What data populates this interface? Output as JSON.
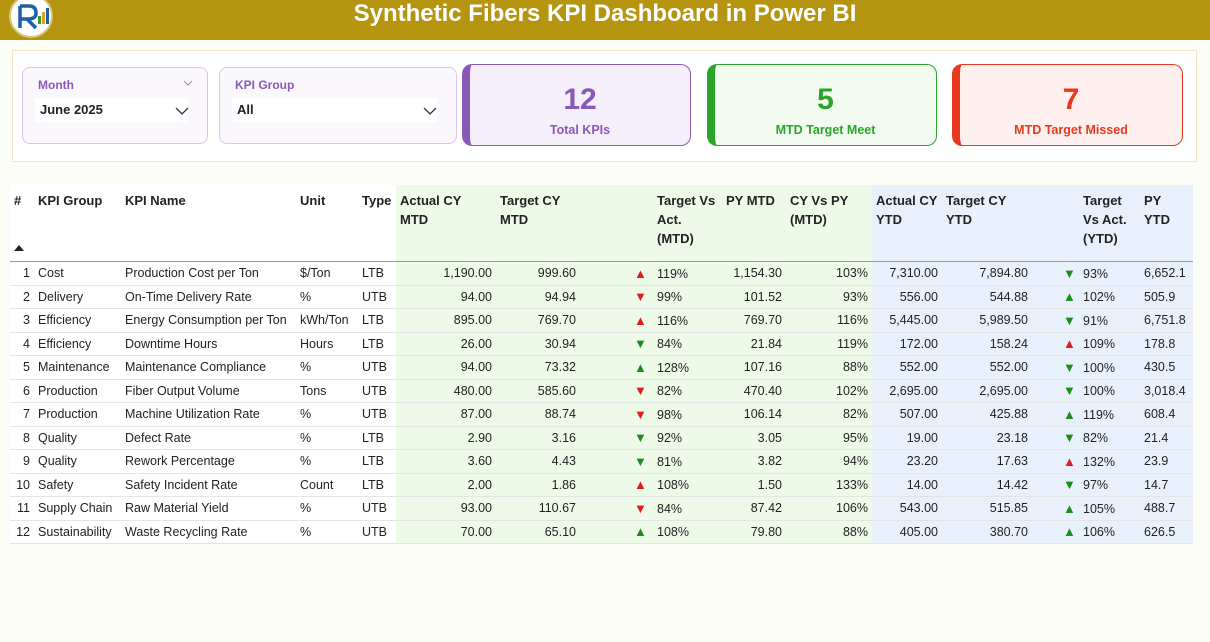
{
  "header": {
    "title": "Synthetic Fibers KPI Dashboard in Power BI"
  },
  "slicers": [
    {
      "label": "Month",
      "value": "June 2025"
    },
    {
      "label": "KPI Group",
      "value": "All"
    }
  ],
  "cards": [
    {
      "value": "12",
      "label": "Total KPIs",
      "color": "#8b58b8",
      "fill": "#f4effa"
    },
    {
      "value": "5",
      "label": "MTD Target Meet",
      "color": "#2aa52a",
      "fill": "#f1fbef"
    },
    {
      "value": "7",
      "label": "MTD Target Missed",
      "color": "#e8391e",
      "fill": "#fdf0ee"
    }
  ],
  "table": {
    "columns": [
      "#",
      "KPI Group",
      "KPI Name",
      "Unit",
      "Type",
      "Actual CY MTD",
      "Target CY MTD",
      "Target Vs Act. (MTD)",
      "PY MTD",
      "CY Vs PY (MTD)",
      "Actual CY YTD",
      "Target CY YTD",
      "Target Vs Act. (YTD)",
      "PY YTD"
    ],
    "icon_colors": {
      "good": "#1f8a1f",
      "bad": "#e01b1b"
    },
    "rows": [
      [
        "1",
        "Cost",
        "Production Cost per Ton",
        "$/Ton",
        "LTB",
        "1,190.00",
        "999.60",
        {
          "icon": "▲",
          "status": "bad",
          "text": "119%"
        },
        "1,154.30",
        "103%",
        "7,310.00",
        "7,894.80",
        {
          "icon": "▼",
          "status": "good",
          "text": "93%"
        },
        "6,652.1"
      ],
      [
        "2",
        "Delivery",
        "On-Time Delivery Rate",
        "%",
        "UTB",
        "94.00",
        "94.94",
        {
          "icon": "▼",
          "status": "bad",
          "text": "99%"
        },
        "101.52",
        "93%",
        "556.00",
        "544.88",
        {
          "icon": "▲",
          "status": "good",
          "text": "102%"
        },
        "505.9"
      ],
      [
        "3",
        "Efficiency",
        "Energy Consumption per Ton",
        "kWh/Ton",
        "LTB",
        "895.00",
        "769.70",
        {
          "icon": "▲",
          "status": "bad",
          "text": "116%"
        },
        "769.70",
        "116%",
        "5,445.00",
        "5,989.50",
        {
          "icon": "▼",
          "status": "good",
          "text": "91%"
        },
        "6,751.8"
      ],
      [
        "4",
        "Efficiency",
        "Downtime Hours",
        "Hours",
        "LTB",
        "26.00",
        "30.94",
        {
          "icon": "▼",
          "status": "good",
          "text": "84%"
        },
        "21.84",
        "119%",
        "172.00",
        "158.24",
        {
          "icon": "▲",
          "status": "bad",
          "text": "109%"
        },
        "178.8"
      ],
      [
        "5",
        "Maintenance",
        "Maintenance Compliance",
        "%",
        "UTB",
        "94.00",
        "73.32",
        {
          "icon": "▲",
          "status": "good",
          "text": "128%"
        },
        "107.16",
        "88%",
        "552.00",
        "552.00",
        {
          "icon": "▼",
          "status": "good",
          "text": "100%"
        },
        "430.5"
      ],
      [
        "6",
        "Production",
        "Fiber Output Volume",
        "Tons",
        "UTB",
        "480.00",
        "585.60",
        {
          "icon": "▼",
          "status": "bad",
          "text": "82%"
        },
        "470.40",
        "102%",
        "2,695.00",
        "2,695.00",
        {
          "icon": "▼",
          "status": "good",
          "text": "100%"
        },
        "3,018.4"
      ],
      [
        "7",
        "Production",
        "Machine Utilization Rate",
        "%",
        "UTB",
        "87.00",
        "88.74",
        {
          "icon": "▼",
          "status": "bad",
          "text": "98%"
        },
        "106.14",
        "82%",
        "507.00",
        "425.88",
        {
          "icon": "▲",
          "status": "good",
          "text": "119%"
        },
        "608.4"
      ],
      [
        "8",
        "Quality",
        "Defect Rate",
        "%",
        "LTB",
        "2.90",
        "3.16",
        {
          "icon": "▼",
          "status": "good",
          "text": "92%"
        },
        "3.05",
        "95%",
        "19.00",
        "23.18",
        {
          "icon": "▼",
          "status": "good",
          "text": "82%"
        },
        "21.4"
      ],
      [
        "9",
        "Quality",
        "Rework Percentage",
        "%",
        "LTB",
        "3.60",
        "4.43",
        {
          "icon": "▼",
          "status": "good",
          "text": "81%"
        },
        "3.82",
        "94%",
        "23.20",
        "17.63",
        {
          "icon": "▲",
          "status": "bad",
          "text": "132%"
        },
        "23.9"
      ],
      [
        "10",
        "Safety",
        "Safety Incident Rate",
        "Count",
        "LTB",
        "2.00",
        "1.86",
        {
          "icon": "▲",
          "status": "bad",
          "text": "108%"
        },
        "1.50",
        "133%",
        "14.00",
        "14.42",
        {
          "icon": "▼",
          "status": "good",
          "text": "97%"
        },
        "14.7"
      ],
      [
        "11",
        "Supply Chain",
        "Raw Material Yield",
        "%",
        "UTB",
        "93.00",
        "110.67",
        {
          "icon": "▼",
          "status": "bad",
          "text": "84%"
        },
        "87.42",
        "106%",
        "543.00",
        "515.85",
        {
          "icon": "▲",
          "status": "good",
          "text": "105%"
        },
        "488.7"
      ],
      [
        "12",
        "Sustainability",
        "Waste Recycling Rate",
        "%",
        "UTB",
        "70.00",
        "65.10",
        {
          "icon": "▲",
          "status": "good",
          "text": "108%"
        },
        "79.80",
        "88%",
        "405.00",
        "380.70",
        {
          "icon": "▲",
          "status": "good",
          "text": "106%"
        },
        "626.5"
      ]
    ]
  }
}
